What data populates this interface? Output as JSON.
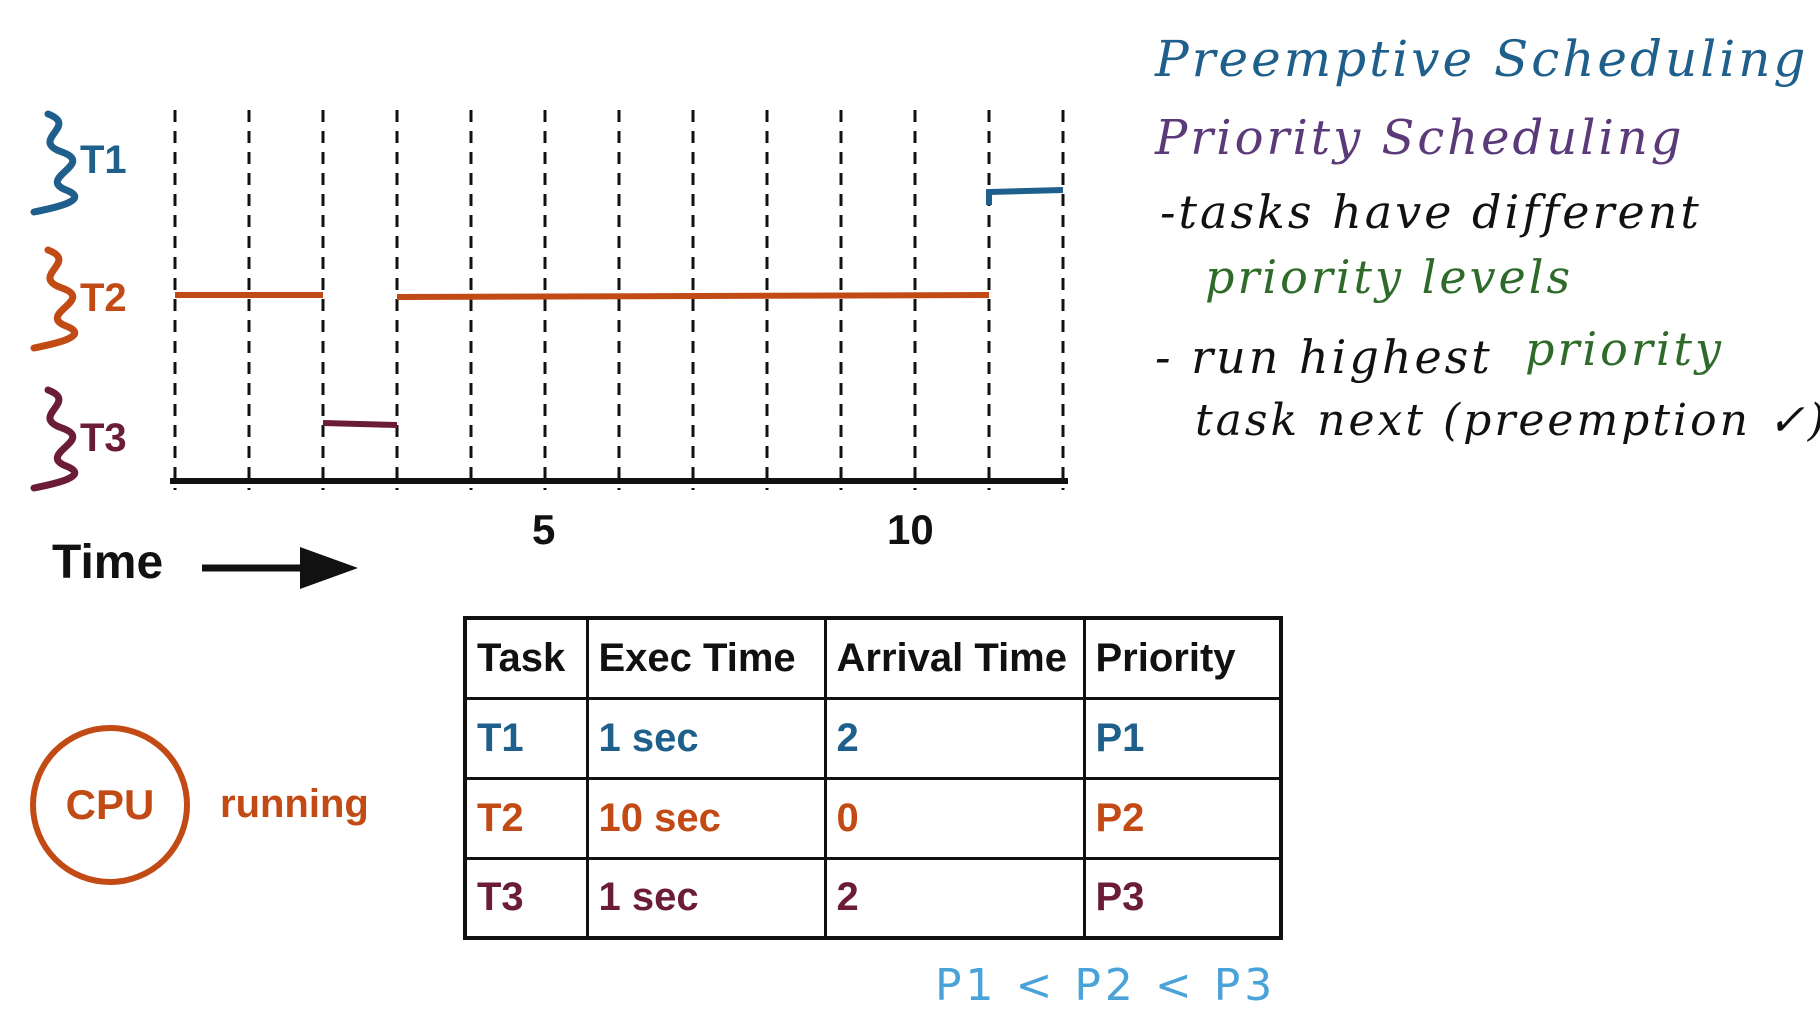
{
  "timeline": {
    "time_label": "Time",
    "axis_ticks": [
      "5",
      "10"
    ],
    "threads": [
      {
        "label": "T1",
        "color": "#1f5f8b"
      },
      {
        "label": "T2",
        "color": "#c24a14"
      },
      {
        "label": "T3",
        "color": "#6b1d35"
      }
    ]
  },
  "notes": {
    "title": "Preemptive Scheduling",
    "subtitle": "Priority Scheduling",
    "bullet1_a": "-tasks have different",
    "bullet1_b": "priority levels",
    "bullet2_a": "- run highest",
    "bullet2_b": "priority",
    "bullet2_c": "task next (preemption ✓)"
  },
  "cpu": {
    "label": "CPU",
    "status": "running"
  },
  "table": {
    "headers": [
      "Task",
      "Exec Time",
      "Arrival Time",
      "Priority"
    ],
    "rows": [
      {
        "task": "T1",
        "exec": "1 sec",
        "arrival": "2",
        "priority": "P1",
        "color": "#1f5f8b"
      },
      {
        "task": "T2",
        "exec": "10 sec",
        "arrival": "0",
        "priority": "P2",
        "color": "#c24a14"
      },
      {
        "task": "T3",
        "exec": "1 sec",
        "arrival": "2",
        "priority": "P3",
        "color": "#6b1d35"
      }
    ]
  },
  "priority_order": "P1 < P2 < P3"
}
